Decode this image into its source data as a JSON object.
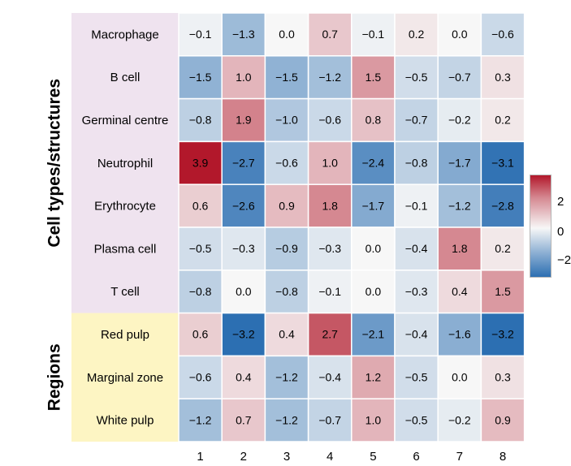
{
  "chart_data": {
    "type": "heatmap",
    "row_groups": [
      {
        "name": "Cell types/structures",
        "color": "#efe3ef",
        "rows": [
          "Macrophage",
          "B cell",
          "Germinal centre",
          "Neutrophil",
          "Erythrocyte",
          "Plasma cell",
          "T cell"
        ]
      },
      {
        "name": "Regions",
        "color": "#fdf5c3",
        "rows": [
          "Red pulp",
          "Marginal zone",
          "White pulp"
        ]
      }
    ],
    "columns": [
      "1",
      "2",
      "3",
      "4",
      "5",
      "6",
      "7",
      "8"
    ],
    "rows": [
      "Macrophage",
      "B cell",
      "Germinal centre",
      "Neutrophil",
      "Erythrocyte",
      "Plasma cell",
      "T cell",
      "Red pulp",
      "Marginal zone",
      "White pulp"
    ],
    "values": [
      [
        -0.1,
        -1.3,
        0.0,
        0.7,
        -0.1,
        0.2,
        0.0,
        -0.6
      ],
      [
        -1.5,
        1.0,
        -1.5,
        -1.2,
        1.5,
        -0.5,
        -0.7,
        0.3
      ],
      [
        -0.8,
        1.9,
        -1.0,
        -0.6,
        0.8,
        -0.7,
        -0.2,
        0.2
      ],
      [
        3.9,
        -2.7,
        -0.6,
        1.0,
        -2.4,
        -0.8,
        -1.7,
        -3.1
      ],
      [
        0.6,
        -2.6,
        0.9,
        1.8,
        -1.7,
        -0.1,
        -1.2,
        -2.8
      ],
      [
        -0.5,
        -0.3,
        -0.9,
        -0.3,
        0.0,
        -0.4,
        1.8,
        0.2
      ],
      [
        -0.8,
        0.0,
        -0.8,
        -0.1,
        0.0,
        -0.3,
        0.4,
        1.5
      ],
      [
        0.6,
        -3.2,
        0.4,
        2.7,
        -2.1,
        -0.4,
        -1.6,
        -3.2
      ],
      [
        -0.6,
        0.4,
        -1.2,
        -0.4,
        1.2,
        -0.5,
        0.0,
        0.3
      ],
      [
        -1.2,
        0.7,
        -1.2,
        -0.7,
        1.0,
        -0.5,
        -0.2,
        0.9
      ]
    ],
    "color_scale": {
      "low": "#2c6fb2",
      "mid": "#f7f7f7",
      "high": "#b2182b",
      "vmin": -3.2,
      "vmax": 3.9
    },
    "legend": {
      "ticks": [
        "2",
        "0",
        "−2"
      ],
      "position": "right"
    },
    "xlabel": "",
    "ylabel": "",
    "title": ""
  }
}
